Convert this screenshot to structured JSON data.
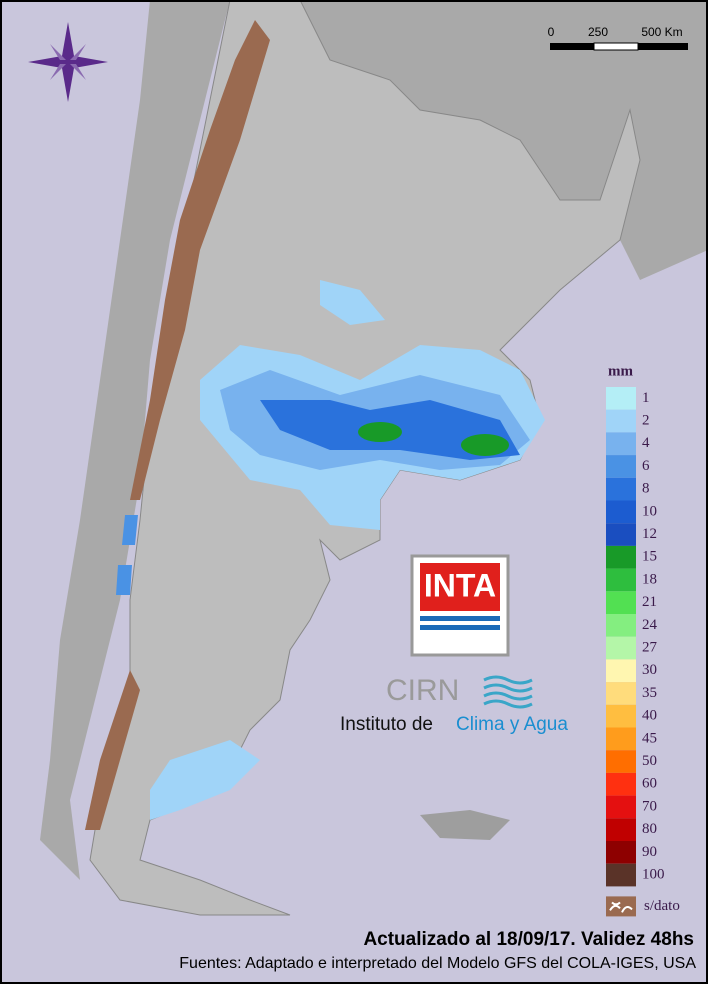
{
  "map": {
    "scale_bar": {
      "labels": [
        "0",
        "250",
        "500 Km"
      ]
    },
    "legend": {
      "title": "mm",
      "entries": [
        {
          "label": "1",
          "color": "#b4eef6"
        },
        {
          "label": "2",
          "color": "#a0d4f8"
        },
        {
          "label": "4",
          "color": "#78b2ee"
        },
        {
          "label": "6",
          "color": "#4a92e4"
        },
        {
          "label": "8",
          "color": "#2a72dc"
        },
        {
          "label": "10",
          "color": "#1c5cd0"
        },
        {
          "label": "12",
          "color": "#1a4ec0"
        },
        {
          "label": "15",
          "color": "#189a28"
        },
        {
          "label": "18",
          "color": "#2ebe3e"
        },
        {
          "label": "21",
          "color": "#52e052"
        },
        {
          "label": "24",
          "color": "#84ee80"
        },
        {
          "label": "27",
          "color": "#b4f6a8"
        },
        {
          "label": "30",
          "color": "#fff6b0"
        },
        {
          "label": "35",
          "color": "#ffdc7c"
        },
        {
          "label": "40",
          "color": "#ffbe40"
        },
        {
          "label": "45",
          "color": "#ff9c1c"
        },
        {
          "label": "50",
          "color": "#ff6e00"
        },
        {
          "label": "60",
          "color": "#ff3010"
        },
        {
          "label": "70",
          "color": "#e41010"
        },
        {
          "label": "80",
          "color": "#c00000"
        },
        {
          "label": "90",
          "color": "#8e0000"
        },
        {
          "label": "100",
          "color": "#5a3328"
        }
      ],
      "no_data": {
        "label": "s/dato",
        "color": "#9a6a50"
      }
    },
    "logo": {
      "inta": "INTA",
      "cirn": "CIRN",
      "institute": "Instituto de",
      "institute_highlight": "Clima y Agua"
    },
    "footer": {
      "updated": "Actualizado al 18/09/17. Validez 48hs",
      "sources": "Fuentes: Adaptado e interpretado del Modelo GFS del COLA-IGES, USA"
    }
  }
}
